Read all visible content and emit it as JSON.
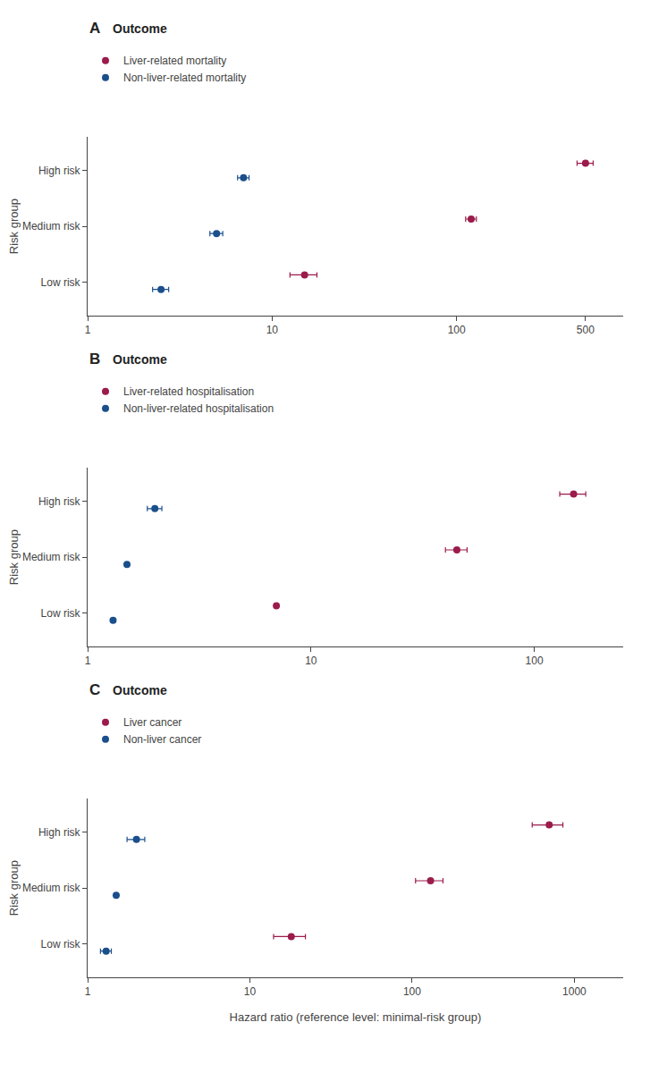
{
  "chart_data": [
    {
      "type": "scatter",
      "title": "A",
      "subtitle": "Outcome",
      "ylabel": "Risk group",
      "categories": [
        "Low risk",
        "Medium risk",
        "High risk"
      ],
      "orientation": "horizontal",
      "log": "x",
      "grid": false,
      "legend": "upper left",
      "xlim": [
        1,
        800
      ],
      "xticks": [
        1,
        10,
        100,
        500
      ],
      "series": [
        {
          "name": "Liver-related mortality",
          "color": "#9B1B4B",
          "marker": "circle",
          "values": [
            15.0,
            120.0,
            500.0
          ],
          "error_lo": [
            2.5,
            8.0,
            50.0
          ],
          "error_hi": [
            2.5,
            8.0,
            50.0
          ]
        },
        {
          "name": "Non-liver-related mortality",
          "color": "#1B4F8C",
          "marker": "circle",
          "values": [
            2.5,
            5.0,
            7.0
          ],
          "error_lo": [
            0.25,
            0.4,
            0.5
          ],
          "error_hi": [
            0.25,
            0.4,
            0.5
          ]
        }
      ]
    },
    {
      "type": "scatter",
      "title": "B",
      "subtitle": "Outcome",
      "ylabel": "Risk group",
      "categories": [
        "Low risk",
        "Medium risk",
        "High risk"
      ],
      "orientation": "horizontal",
      "log": "x",
      "grid": false,
      "legend": "upper left",
      "xlim": [
        1,
        250
      ],
      "xticks": [
        1,
        10,
        100
      ],
      "series": [
        {
          "name": "Liver-related hospitalisation",
          "color": "#9B1B4B",
          "marker": "circle",
          "values": [
            7.0,
            45.0,
            150.0
          ],
          "error_lo": [
            0.0,
            5.0,
            20.0
          ],
          "error_hi": [
            0.0,
            5.0,
            20.0
          ]
        },
        {
          "name": "Non-liver-related hospitalisation",
          "color": "#1B4F8C",
          "marker": "circle",
          "values": [
            1.3,
            1.5,
            2.0
          ],
          "error_lo": [
            0.0,
            0.0,
            0.15
          ],
          "error_hi": [
            0.0,
            0.0,
            0.15
          ]
        }
      ]
    },
    {
      "type": "scatter",
      "title": "C",
      "subtitle": "Outcome",
      "ylabel": "Risk group",
      "xlabel": "Hazard ratio (reference level: minimal-risk group)",
      "categories": [
        "Low risk",
        "Medium risk",
        "High risk"
      ],
      "orientation": "horizontal",
      "log": "x",
      "grid": false,
      "legend": "upper left",
      "xlim": [
        1,
        2000
      ],
      "xticks": [
        1,
        10,
        100,
        1000
      ],
      "series": [
        {
          "name": "Liver cancer",
          "color": "#9B1B4B",
          "marker": "circle",
          "values": [
            18.0,
            130.0,
            700.0
          ],
          "error_lo": [
            4.0,
            25.0,
            150.0
          ],
          "error_hi": [
            4.0,
            25.0,
            150.0
          ]
        },
        {
          "name": "Non-liver cancer",
          "color": "#1B4F8C",
          "marker": "circle",
          "values": [
            1.3,
            1.5,
            2.0
          ],
          "error_lo": [
            0.1,
            0.0,
            0.25
          ],
          "error_hi": [
            0.1,
            0.0,
            0.25
          ]
        }
      ]
    }
  ]
}
